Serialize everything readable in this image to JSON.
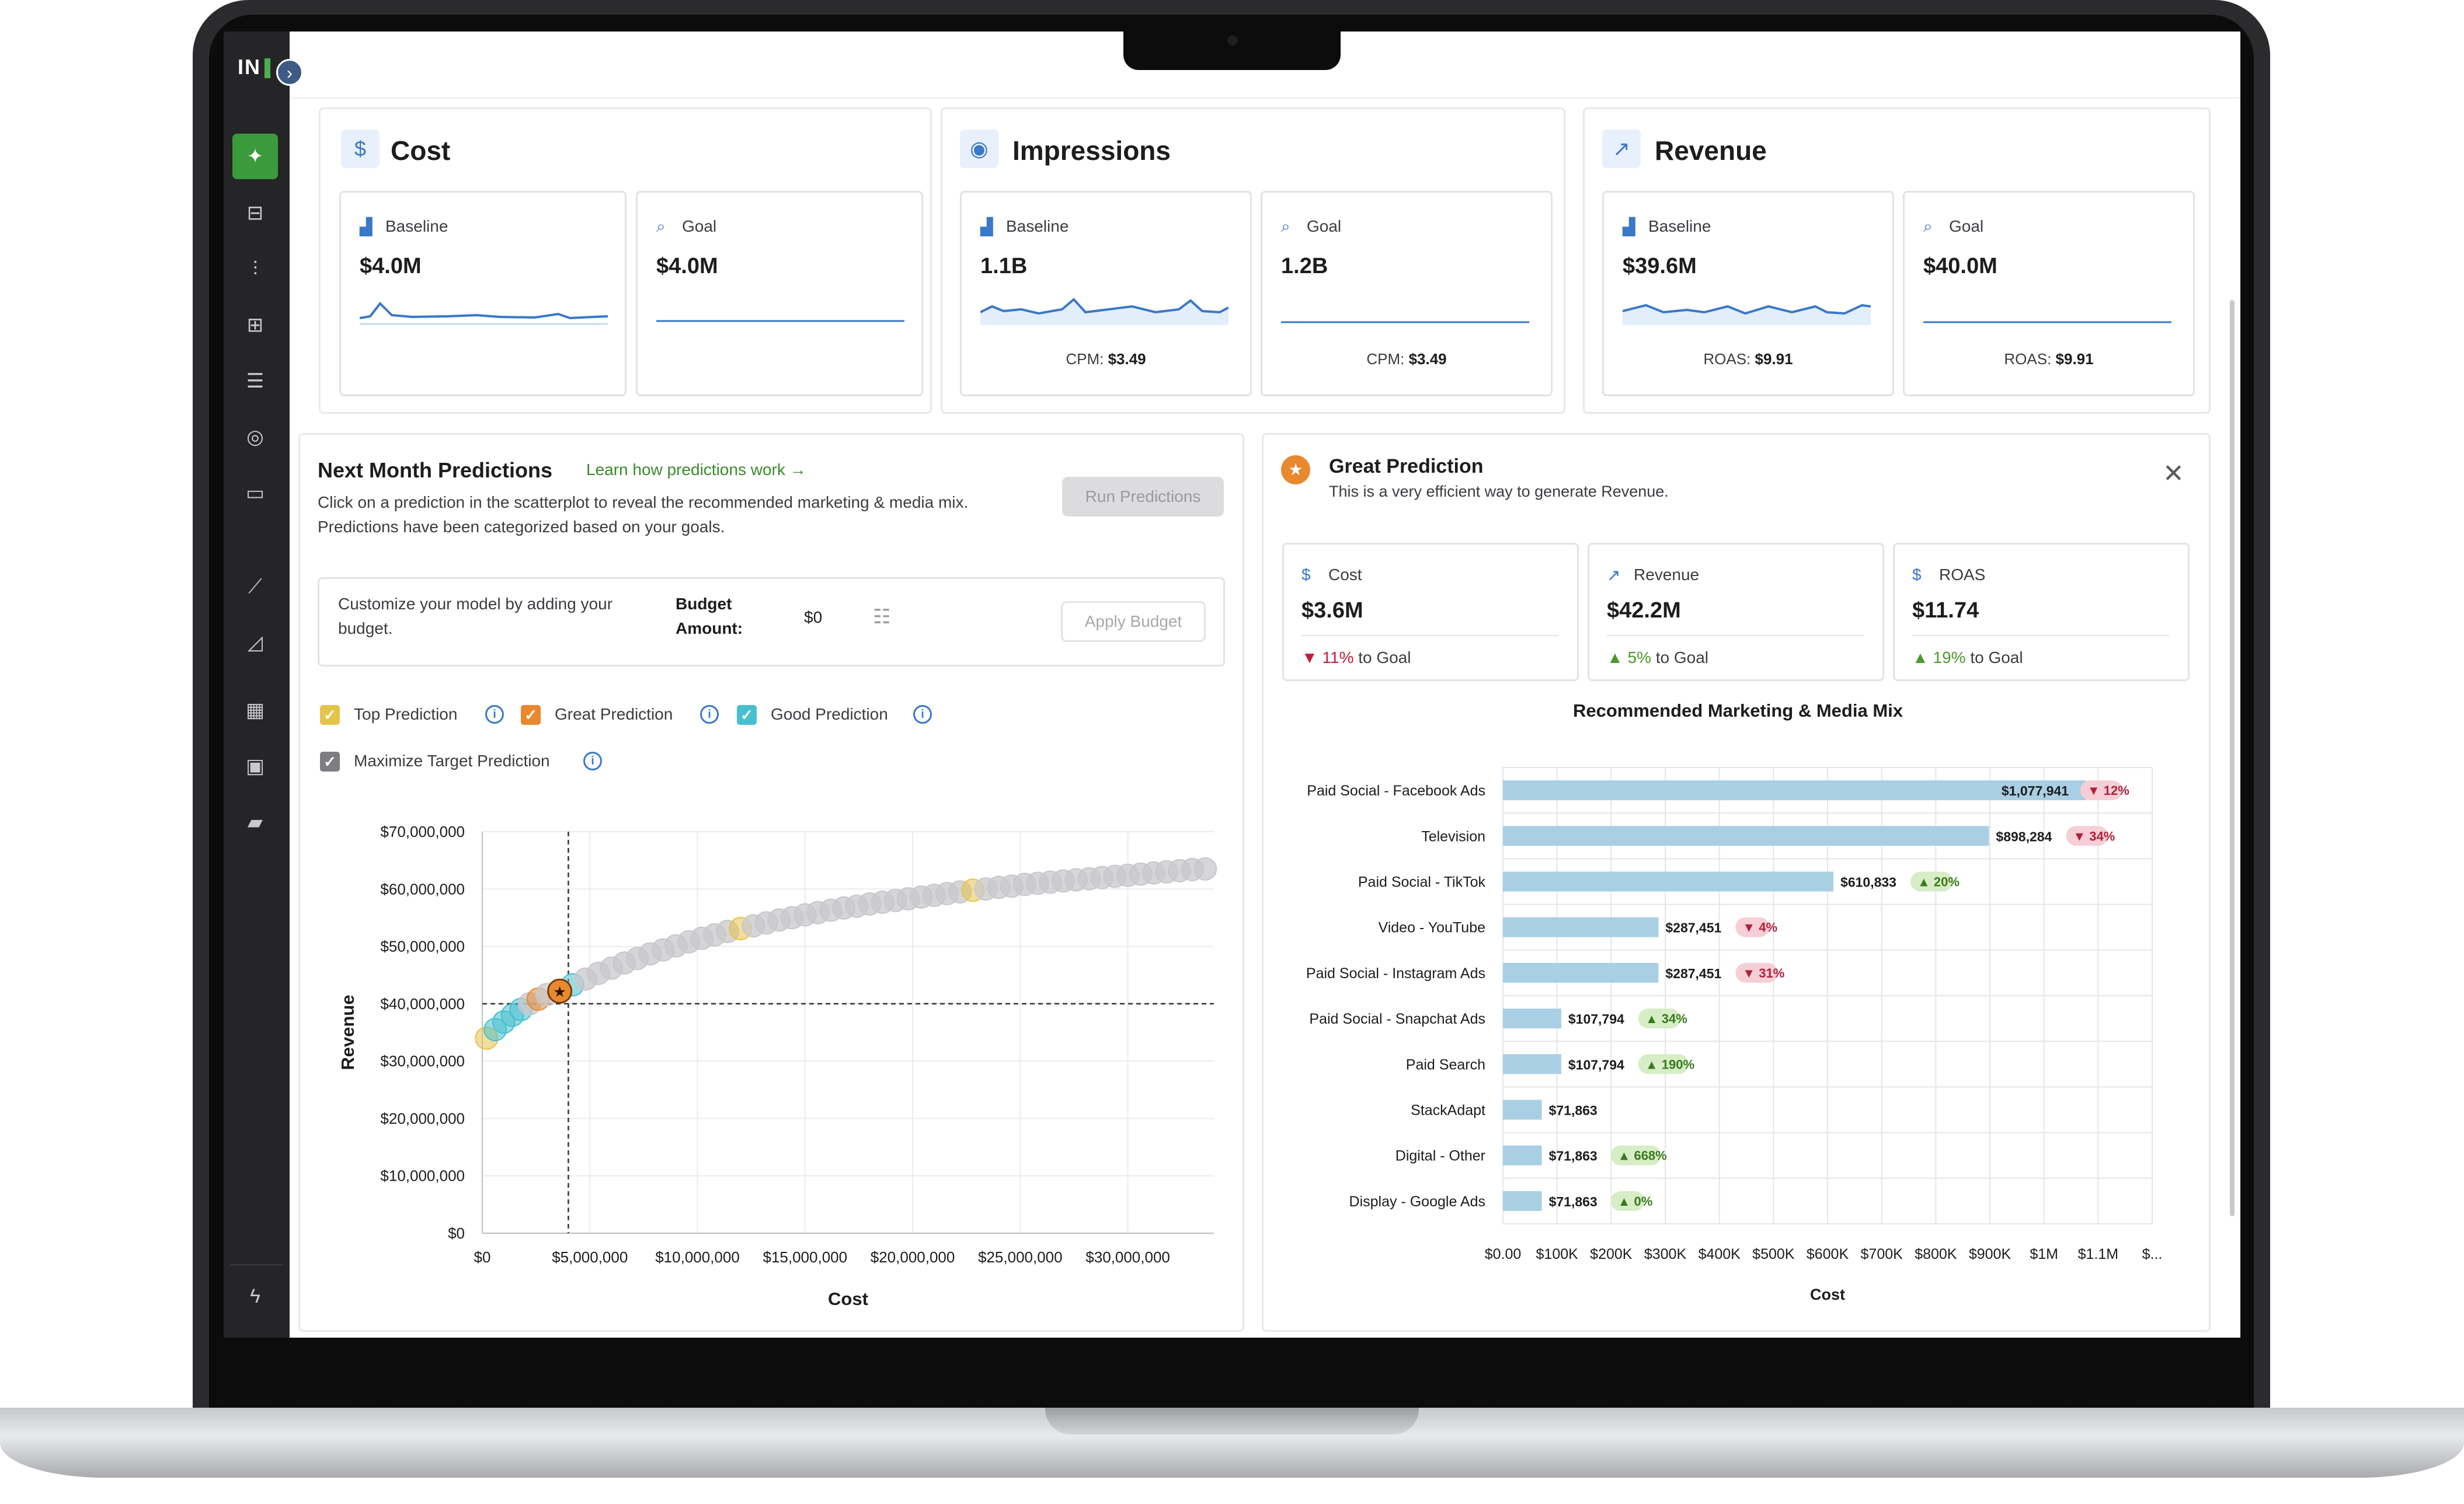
{
  "sidebar": {
    "logo": "IN",
    "icons": [
      "sparkle-icon",
      "search-report-icon",
      "sliders-icon",
      "hierarchy-icon",
      "list-settings-icon",
      "target-icon",
      "toggle-icon",
      "line-chart-icon",
      "area-chart-icon",
      "map-icon",
      "image-icon",
      "folder-icon",
      "bolt-icon"
    ]
  },
  "metrics": [
    {
      "title": "Cost",
      "baseline_label": "Baseline",
      "baseline_value": "$4.0M",
      "goal_label": "Goal",
      "goal_value": "$4.0M",
      "baseline_foot_label": "",
      "baseline_foot_value": "",
      "goal_foot_label": "",
      "goal_foot_value": ""
    },
    {
      "title": "Impressions",
      "baseline_label": "Baseline",
      "baseline_value": "1.1B",
      "goal_label": "Goal",
      "goal_value": "1.2B",
      "baseline_foot_label": "CPM: ",
      "baseline_foot_value": "$3.49",
      "goal_foot_label": "CPM: ",
      "goal_foot_value": "$3.49"
    },
    {
      "title": "Revenue",
      "baseline_label": "Baseline",
      "baseline_value": "$39.6M",
      "goal_label": "Goal",
      "goal_value": "$40.0M",
      "baseline_foot_label": "ROAS: ",
      "baseline_foot_value": "$9.91",
      "goal_foot_label": "ROAS: ",
      "goal_foot_value": "$9.91"
    }
  ],
  "predictions": {
    "title": "Next Month Predictions",
    "learn_link": "Learn how predictions work",
    "description": "Click on a prediction in the scatterplot to reveal the recommended marketing & media mix. Predictions have been categorized based on your goals.",
    "run_button": "Run Predictions",
    "budget_text": "Customize your model by adding your budget.",
    "budget_label": "Budget Amount:",
    "budget_value": "$0",
    "apply_button": "Apply Budget",
    "legend": {
      "top": "Top Prediction",
      "great": "Great Prediction",
      "good": "Good Prediction",
      "maximize": "Maximize Target Prediction"
    }
  },
  "detail": {
    "title": "Great Prediction",
    "subtitle": "This is a very efficient way to generate Revenue.",
    "stats": [
      {
        "label": "Cost",
        "value": "$3.6M",
        "delta": "11%",
        "delta_suffix": " to Goal",
        "direction": "down"
      },
      {
        "label": "Revenue",
        "value": "$42.2M",
        "delta": "5%",
        "delta_suffix": " to Goal",
        "direction": "up"
      },
      {
        "label": "ROAS",
        "value": "$11.74",
        "delta": "19%",
        "delta_suffix": " to Goal",
        "direction": "up"
      }
    ],
    "mix_title": "Recommended Marketing & Media Mix"
  },
  "chart_data": [
    {
      "type": "scatter",
      "title": "",
      "xlabel": "Cost",
      "ylabel": "Revenue",
      "xlim": [
        0,
        34000000
      ],
      "ylim": [
        0,
        70000000
      ],
      "x_ticks": [
        "$0",
        "$5,000,000",
        "$10,000,000",
        "$15,000,000",
        "$20,000,000",
        "$25,000,000",
        "$30,000,000"
      ],
      "y_ticks": [
        "$0",
        "$10,000,000",
        "$20,000,000",
        "$30,000,000",
        "$40,000,000",
        "$50,000,000",
        "$60,000,000",
        "$70,000,000"
      ],
      "x_tick_values": [
        0,
        5000000,
        10000000,
        15000000,
        20000000,
        25000000,
        30000000
      ],
      "y_tick_values": [
        0,
        10000000,
        20000000,
        30000000,
        40000000,
        50000000,
        60000000,
        70000000
      ],
      "reference_lines": {
        "x": 4000000,
        "y": 40000000
      },
      "selected_point": {
        "x": 3600000,
        "y": 42200000,
        "category": "great"
      },
      "colors": {
        "top": "#e6c34a",
        "great": "#e8892f",
        "good": "#48bfd0",
        "other": "#c8c8cc"
      },
      "points": [
        {
          "x": 200000,
          "y": 34000000,
          "category": "top"
        },
        {
          "x": 600000,
          "y": 35500000,
          "category": "good"
        },
        {
          "x": 1000000,
          "y": 36800000,
          "category": "good"
        },
        {
          "x": 1400000,
          "y": 38000000,
          "category": "good"
        },
        {
          "x": 1800000,
          "y": 39000000,
          "category": "good"
        },
        {
          "x": 2200000,
          "y": 40000000,
          "category": "other"
        },
        {
          "x": 2600000,
          "y": 40800000,
          "category": "great"
        },
        {
          "x": 3000000,
          "y": 41600000,
          "category": "other"
        },
        {
          "x": 3600000,
          "y": 42200000,
          "category": "great"
        },
        {
          "x": 4200000,
          "y": 43300000,
          "category": "good"
        },
        {
          "x": 4800000,
          "y": 44300000,
          "category": "other"
        },
        {
          "x": 5400000,
          "y": 45300000,
          "category": "other"
        },
        {
          "x": 6000000,
          "y": 46200000,
          "category": "other"
        },
        {
          "x": 6600000,
          "y": 47100000,
          "category": "other"
        },
        {
          "x": 7200000,
          "y": 47900000,
          "category": "other"
        },
        {
          "x": 7800000,
          "y": 48700000,
          "category": "other"
        },
        {
          "x": 8400000,
          "y": 49400000,
          "category": "other"
        },
        {
          "x": 9000000,
          "y": 50100000,
          "category": "other"
        },
        {
          "x": 9600000,
          "y": 50800000,
          "category": "other"
        },
        {
          "x": 10200000,
          "y": 51400000,
          "category": "other"
        },
        {
          "x": 10800000,
          "y": 52000000,
          "category": "other"
        },
        {
          "x": 11400000,
          "y": 52600000,
          "category": "other"
        },
        {
          "x": 12000000,
          "y": 53100000,
          "category": "top"
        },
        {
          "x": 12600000,
          "y": 53600000,
          "category": "other"
        },
        {
          "x": 13200000,
          "y": 54100000,
          "category": "other"
        },
        {
          "x": 13800000,
          "y": 54600000,
          "category": "other"
        },
        {
          "x": 14400000,
          "y": 55000000,
          "category": "other"
        },
        {
          "x": 15000000,
          "y": 55500000,
          "category": "other"
        },
        {
          "x": 15600000,
          "y": 55900000,
          "category": "other"
        },
        {
          "x": 16200000,
          "y": 56300000,
          "category": "other"
        },
        {
          "x": 16800000,
          "y": 56700000,
          "category": "other"
        },
        {
          "x": 17400000,
          "y": 57000000,
          "category": "other"
        },
        {
          "x": 18000000,
          "y": 57400000,
          "category": "other"
        },
        {
          "x": 18600000,
          "y": 57700000,
          "category": "other"
        },
        {
          "x": 19200000,
          "y": 58000000,
          "category": "other"
        },
        {
          "x": 19800000,
          "y": 58300000,
          "category": "other"
        },
        {
          "x": 20400000,
          "y": 58600000,
          "category": "other"
        },
        {
          "x": 21000000,
          "y": 58900000,
          "category": "other"
        },
        {
          "x": 21600000,
          "y": 59200000,
          "category": "other"
        },
        {
          "x": 22200000,
          "y": 59500000,
          "category": "other"
        },
        {
          "x": 22800000,
          "y": 59800000,
          "category": "top"
        },
        {
          "x": 23400000,
          "y": 60000000,
          "category": "other"
        },
        {
          "x": 24000000,
          "y": 60300000,
          "category": "other"
        },
        {
          "x": 24600000,
          "y": 60500000,
          "category": "other"
        },
        {
          "x": 25200000,
          "y": 60800000,
          "category": "other"
        },
        {
          "x": 25800000,
          "y": 61000000,
          "category": "other"
        },
        {
          "x": 26400000,
          "y": 61200000,
          "category": "other"
        },
        {
          "x": 27000000,
          "y": 61400000,
          "category": "other"
        },
        {
          "x": 27600000,
          "y": 61600000,
          "category": "other"
        },
        {
          "x": 28200000,
          "y": 61800000,
          "category": "other"
        },
        {
          "x": 28800000,
          "y": 62000000,
          "category": "other"
        },
        {
          "x": 29400000,
          "y": 62200000,
          "category": "other"
        },
        {
          "x": 30000000,
          "y": 62400000,
          "category": "other"
        },
        {
          "x": 30600000,
          "y": 62600000,
          "category": "other"
        },
        {
          "x": 31200000,
          "y": 62800000,
          "category": "other"
        },
        {
          "x": 31800000,
          "y": 63000000,
          "category": "other"
        },
        {
          "x": 32400000,
          "y": 63200000,
          "category": "other"
        },
        {
          "x": 33000000,
          "y": 63400000,
          "category": "other"
        },
        {
          "x": 33600000,
          "y": 63500000,
          "category": "other"
        }
      ]
    },
    {
      "type": "bar",
      "orientation": "horizontal",
      "title": "Recommended Marketing & Media Mix",
      "xlabel": "Cost",
      "ylabel": "",
      "xlim": [
        0,
        1200000
      ],
      "x_ticks": [
        "$0.00",
        "$100K",
        "$200K",
        "$300K",
        "$400K",
        "$500K",
        "$600K",
        "$700K",
        "$800K",
        "$900K",
        "$1M",
        "$1.1M",
        "$..."
      ],
      "categories": [
        "Paid Social - Facebook Ads",
        "Television",
        "Paid Social - TikTok",
        "Video - YouTube",
        "Paid Social - Instagram Ads",
        "Paid Social - Snapchat Ads",
        "Paid Search",
        "StackAdapt",
        "Digital - Other",
        "Display - Google Ads"
      ],
      "values": [
        1077941,
        898284,
        610833,
        287451,
        287451,
        107794,
        107794,
        71863,
        71863,
        71863
      ],
      "value_labels": [
        "$1,077,941",
        "$898,284",
        "$610,833",
        "$287,451",
        "$287,451",
        "$107,794",
        "$107,794",
        "$71,863",
        "$71,863",
        "$71,863"
      ],
      "deltas": [
        "12%",
        "34%",
        "20%",
        "4%",
        "31%",
        "34%",
        "190%",
        "",
        "668%",
        "0%"
      ],
      "delta_directions": [
        "down",
        "down",
        "up",
        "down",
        "down",
        "up",
        "up",
        "",
        "up",
        "up"
      ],
      "bar_color": "#a9cfe4"
    }
  ]
}
